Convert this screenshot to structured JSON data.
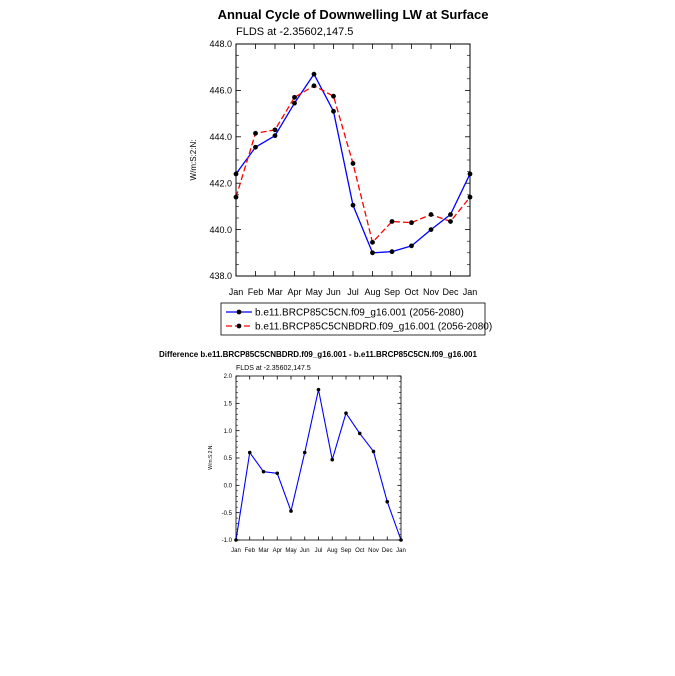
{
  "chart_data": [
    {
      "type": "line",
      "title": "Annual Cycle of Downwelling LW at Surface",
      "subtitle": "FLDS at -2.35602,147.5",
      "ylabel": "W/m:S:2:N:",
      "xlabel": "",
      "categories": [
        "Jan",
        "Feb",
        "Mar",
        "Apr",
        "May",
        "Jun",
        "Jul",
        "Aug",
        "Sep",
        "Oct",
        "Nov",
        "Dec",
        "Jan"
      ],
      "ylim": [
        438.0,
        448.0
      ],
      "yticks": [
        "438.0",
        "440.0",
        "442.0",
        "444.0",
        "446.0",
        "448.0"
      ],
      "legend_position": "bottom",
      "series": [
        {
          "name": "b.e11.BRCP85C5CN.f09_g16.001 (2056-2080)",
          "color": "#0000ff",
          "style": "solid",
          "values": [
            442.4,
            443.55,
            444.05,
            445.45,
            446.7,
            445.1,
            441.05,
            439.0,
            439.05,
            439.3,
            440.0,
            440.65,
            442.4
          ]
        },
        {
          "name": "b.e11.BRCP85C5CNBDRD.f09_g16.001 (2056-2080)",
          "color": "#ff0000",
          "style": "dashed",
          "values": [
            441.4,
            444.15,
            444.3,
            445.7,
            446.2,
            445.75,
            442.85,
            439.45,
            440.35,
            440.3,
            440.65,
            440.35,
            441.4
          ]
        }
      ]
    },
    {
      "type": "line",
      "title": "Difference b.e11.BRCP85C5CNBDRD.f09_g16.001 - b.e11.BRCP85C5CN.f09_g16.001",
      "subtitle": "FLDS at -2.35602,147.5",
      "ylabel": "W/m:S:2:N:",
      "xlabel": "",
      "categories": [
        "Jan",
        "Feb",
        "Mar",
        "Apr",
        "May",
        "Jun",
        "Jul",
        "Aug",
        "Sep",
        "Oct",
        "Nov",
        "Dec",
        "Jan"
      ],
      "ylim": [
        -1.0,
        2.0
      ],
      "yticks": [
        "-1.0",
        "-0.5",
        "0.0",
        "0.5",
        "1.0",
        "1.5",
        "2.0"
      ],
      "series": [
        {
          "name": "Difference",
          "color": "#0000ff",
          "style": "solid",
          "values": [
            -1.0,
            0.6,
            0.25,
            0.22,
            -0.47,
            0.6,
            1.75,
            0.47,
            1.32,
            0.95,
            0.62,
            -0.3,
            -1.0
          ]
        }
      ]
    }
  ]
}
